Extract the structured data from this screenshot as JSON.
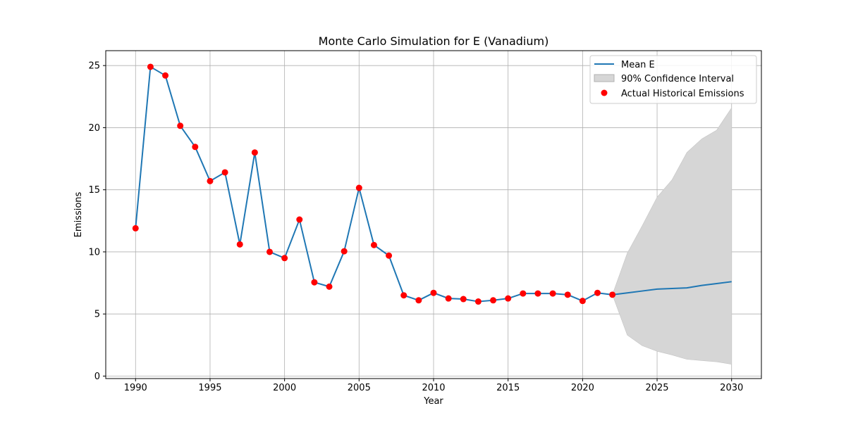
{
  "chart_data": {
    "type": "line",
    "title": "Monte Carlo Simulation for E (Vanadium)",
    "xlabel": "Year",
    "ylabel": "Emissions",
    "xlim": [
      1988,
      2032
    ],
    "ylim": [
      -0.2,
      26.2
    ],
    "grid": true,
    "legend_position": "top-right",
    "x_ticks": [
      1990,
      1995,
      2000,
      2005,
      2010,
      2015,
      2020,
      2025,
      2030
    ],
    "y_ticks": [
      0,
      5,
      10,
      15,
      20,
      25
    ],
    "colors": {
      "mean_line": "#1f77b4",
      "confidence_fill": "#d6d6d6",
      "historical_points": "#ff0000"
    },
    "series": [
      {
        "name": "Mean E",
        "kind": "line",
        "x": [
          1990,
          1991,
          1992,
          1993,
          1994,
          1995,
          1996,
          1997,
          1998,
          1999,
          2000,
          2001,
          2002,
          2003,
          2004,
          2005,
          2006,
          2007,
          2008,
          2009,
          2010,
          2011,
          2012,
          2013,
          2014,
          2015,
          2016,
          2017,
          2018,
          2019,
          2020,
          2021,
          2022,
          2023,
          2024,
          2025,
          2026,
          2027,
          2028,
          2029,
          2030
        ],
        "y": [
          11.9,
          24.9,
          24.2,
          20.15,
          18.45,
          15.7,
          16.4,
          10.6,
          18.0,
          10.0,
          9.5,
          12.6,
          7.55,
          7.2,
          10.05,
          15.15,
          10.55,
          9.7,
          6.5,
          6.1,
          6.7,
          6.25,
          6.2,
          6.0,
          6.1,
          6.25,
          6.65,
          6.65,
          6.65,
          6.55,
          6.05,
          6.7,
          6.55,
          6.7,
          6.85,
          7.0,
          7.05,
          7.1,
          7.3,
          7.45,
          7.6
        ]
      },
      {
        "name": "90% Confidence Interval",
        "kind": "band",
        "x": [
          2022,
          2023,
          2024,
          2025,
          2026,
          2027,
          2028,
          2029,
          2030
        ],
        "lower": [
          6.55,
          3.3,
          2.45,
          2.0,
          1.7,
          1.35,
          1.25,
          1.15,
          0.95
        ],
        "upper": [
          6.55,
          9.9,
          12.1,
          14.4,
          15.8,
          18.0,
          19.1,
          19.8,
          21.6
        ]
      },
      {
        "name": "Actual Historical Emissions",
        "kind": "scatter",
        "x": [
          1990,
          1991,
          1992,
          1993,
          1994,
          1995,
          1996,
          1997,
          1998,
          1999,
          2000,
          2001,
          2002,
          2003,
          2004,
          2005,
          2006,
          2007,
          2008,
          2009,
          2010,
          2011,
          2012,
          2013,
          2014,
          2015,
          2016,
          2017,
          2018,
          2019,
          2020,
          2021,
          2022
        ],
        "y": [
          11.9,
          24.9,
          24.2,
          20.15,
          18.45,
          15.7,
          16.4,
          10.6,
          18.0,
          10.0,
          9.5,
          12.6,
          7.55,
          7.2,
          10.05,
          15.15,
          10.55,
          9.7,
          6.5,
          6.1,
          6.7,
          6.25,
          6.2,
          6.0,
          6.1,
          6.25,
          6.65,
          6.65,
          6.65,
          6.55,
          6.05,
          6.7,
          6.55
        ]
      }
    ]
  }
}
